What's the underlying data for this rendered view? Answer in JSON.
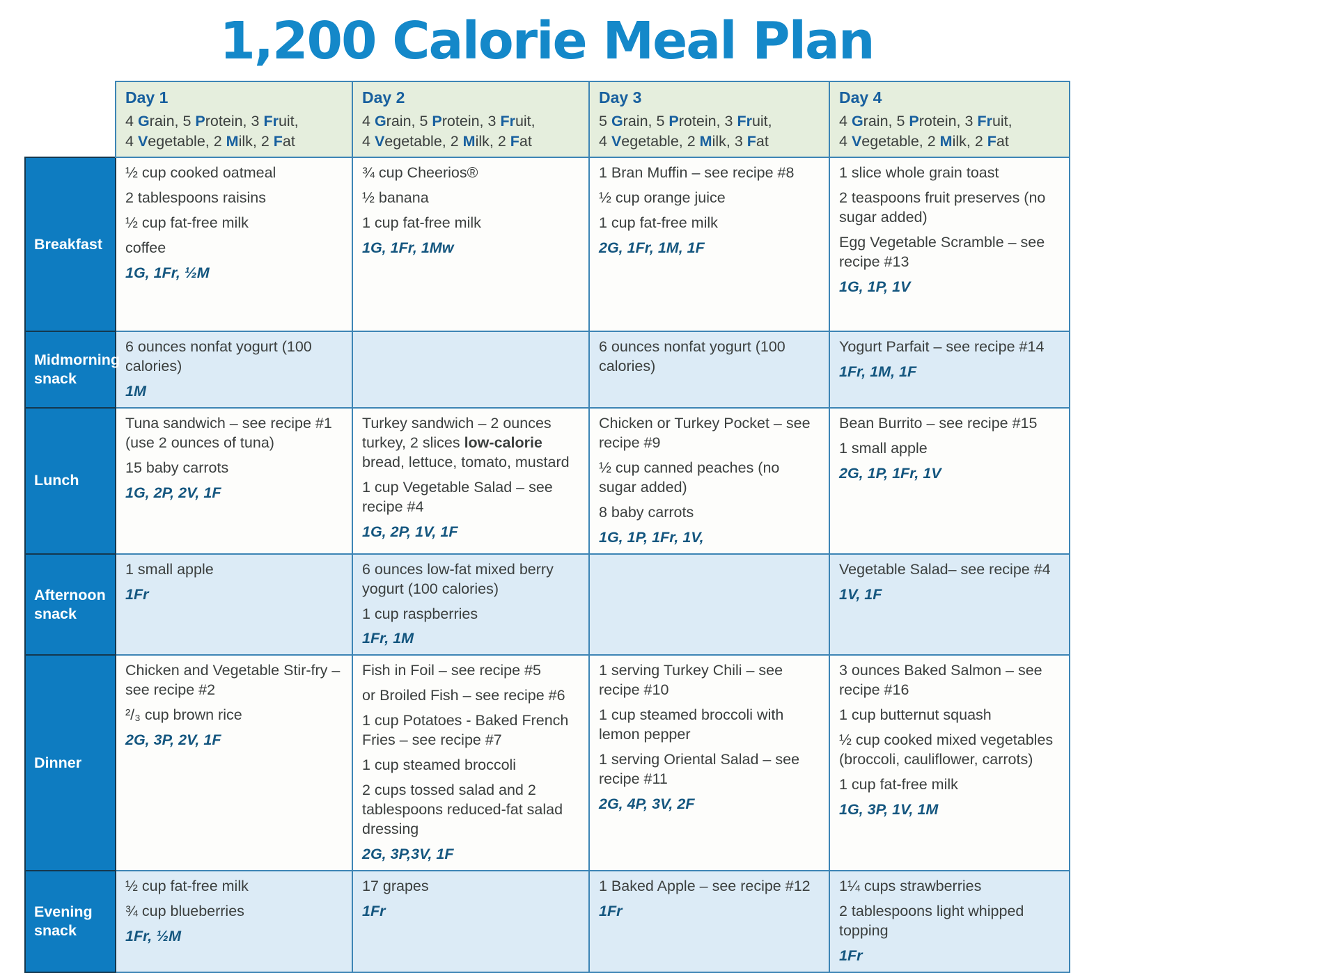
{
  "title": "1,200 Calorie Meal Plan",
  "colors": {
    "title_blue": "#1488c9",
    "accent_blue": "#175f9e",
    "code_blue": "#14567f",
    "label_bg": "#0e7cc1",
    "header_bg": "#e5eedd",
    "snack_bg": "#dcebf6",
    "meal_bg": "#fdfdfb",
    "border_blue": "#3d85b5",
    "text_dark": "#3b3f3e"
  },
  "columns": [
    {
      "day": "Day 1",
      "servings": [
        [
          {
            "pre": "4 ",
            "b": "G",
            "post": "rain, "
          },
          {
            "pre": "5 ",
            "b": "P",
            "post": "rotein, "
          },
          {
            "pre": "3 ",
            "b": "Fr",
            "post": "uit,"
          }
        ],
        [
          {
            "pre": "4 ",
            "b": "V",
            "post": "egetable, "
          },
          {
            "pre": "2 ",
            "b": "M",
            "post": "ilk, "
          },
          {
            "pre": "2 ",
            "b": "F",
            "post": "at"
          }
        ]
      ]
    },
    {
      "day": "Day 2",
      "servings": [
        [
          {
            "pre": "4 ",
            "b": "G",
            "post": "rain, "
          },
          {
            "pre": "5 ",
            "b": "P",
            "post": "rotein, "
          },
          {
            "pre": "3 ",
            "b": "Fr",
            "post": "uit,"
          }
        ],
        [
          {
            "pre": "4 ",
            "b": "V",
            "post": "egetable, "
          },
          {
            "pre": "2 ",
            "b": "M",
            "post": "ilk, "
          },
          {
            "pre": "2 ",
            "b": "F",
            "post": "at"
          }
        ]
      ]
    },
    {
      "day": "Day 3",
      "servings": [
        [
          {
            "pre": "5 ",
            "b": "G",
            "post": "rain, "
          },
          {
            "pre": "5 ",
            "b": "P",
            "post": "rotein, "
          },
          {
            "pre": "3 ",
            "b": "Fr",
            "post": "uit,"
          }
        ],
        [
          {
            "pre": "4 ",
            "b": "V",
            "post": "egetable, "
          },
          {
            "pre": "2 ",
            "b": "M",
            "post": "ilk, "
          },
          {
            "pre": "3 ",
            "b": "F",
            "post": "at"
          }
        ]
      ]
    },
    {
      "day": "Day 4",
      "servings": [
        [
          {
            "pre": "4 ",
            "b": "G",
            "post": "rain, "
          },
          {
            "pre": "5 ",
            "b": "P",
            "post": "rotein, "
          },
          {
            "pre": "3 ",
            "b": "Fr",
            "post": "uit,"
          }
        ],
        [
          {
            "pre": "4 ",
            "b": "V",
            "post": "egetable, "
          },
          {
            "pre": "2 ",
            "b": "M",
            "post": "ilk, "
          },
          {
            "pre": "2 ",
            "b": "F",
            "post": "at"
          }
        ]
      ]
    }
  ],
  "rows": [
    {
      "label": "Breakfast",
      "kind": "meal",
      "cells": [
        {
          "lines": [
            {
              "seg": [
                {
                  "t": "½ cup cooked oatmeal",
                  "s": "n"
                }
              ]
            },
            {
              "seg": [
                {
                  "t": "2 tablespoons raisins",
                  "s": "n"
                }
              ]
            },
            {
              "seg": [
                {
                  "t": "½ cup fat-free milk",
                  "s": "n"
                }
              ]
            },
            {
              "seg": [
                {
                  "t": "coffee",
                  "s": "n"
                }
              ]
            },
            {
              "seg": [
                {
                  "t": "1G, 1Fr, ½M",
                  "s": "c"
                }
              ]
            }
          ]
        },
        {
          "lines": [
            {
              "seg": [
                {
                  "t": "¾ cup Cheerios®",
                  "s": "n"
                }
              ]
            },
            {
              "seg": [
                {
                  "t": "½ banana",
                  "s": "n"
                }
              ]
            },
            {
              "seg": [
                {
                  "t": "1 cup fat-free milk",
                  "s": "n"
                }
              ]
            },
            {
              "seg": [
                {
                  "t": "1G, 1Fr, 1Mw",
                  "s": "c"
                }
              ]
            }
          ]
        },
        {
          "lines": [
            {
              "seg": [
                {
                  "t": "1 Bran Muffin – see recipe #8",
                  "s": "n"
                }
              ]
            },
            {
              "seg": [
                {
                  "t": "½ cup orange juice",
                  "s": "n"
                }
              ]
            },
            {
              "seg": [
                {
                  "t": "1 cup fat-free milk",
                  "s": "n"
                }
              ]
            },
            {
              "seg": [
                {
                  "t": "2G, 1Fr, 1M, 1F",
                  "s": "c"
                }
              ]
            }
          ]
        },
        {
          "lines": [
            {
              "seg": [
                {
                  "t": "1 slice  whole grain toast",
                  "s": "n"
                }
              ]
            },
            {
              "seg": [
                {
                  "t": "2 teaspoons fruit preserves (no sugar added)",
                  "s": "n"
                }
              ]
            },
            {
              "seg": [
                {
                  "t": "Egg Vegetable Scramble – see recipe #13",
                  "s": "n"
                }
              ]
            },
            {
              "seg": [
                {
                  "t": "1G, 1P, 1V",
                  "s": "c"
                }
              ]
            }
          ]
        }
      ]
    },
    {
      "label": "Midmorning snack",
      "kind": "snack",
      "cells": [
        {
          "lines": [
            {
              "seg": [
                {
                  "t": "6 ounces nonfat yogurt (100 calories)",
                  "s": "n"
                }
              ]
            },
            {
              "seg": [
                {
                  "t": "1M",
                  "s": "c"
                }
              ]
            }
          ]
        },
        {
          "lines": []
        },
        {
          "lines": [
            {
              "seg": [
                {
                  "t": "6 ounces nonfat yogurt (100 calories)",
                  "s": "n"
                }
              ]
            }
          ]
        },
        {
          "lines": [
            {
              "seg": [
                {
                  "t": "Yogurt Parfait – see recipe #14",
                  "s": "n"
                }
              ]
            },
            {
              "seg": [
                {
                  "t": "1Fr, 1M, 1F",
                  "s": "c"
                }
              ]
            }
          ]
        }
      ]
    },
    {
      "label": "Lunch",
      "kind": "meal",
      "cells": [
        {
          "lines": [
            {
              "seg": [
                {
                  "t": "Tuna sandwich – see recipe #1 (use 2 ounces of tuna)",
                  "s": "n"
                }
              ]
            },
            {
              "seg": [
                {
                  "t": "15 baby carrots",
                  "s": "n"
                }
              ]
            },
            {
              "seg": [
                {
                  "t": "1G, 2P, 2V, 1F",
                  "s": "c"
                }
              ]
            }
          ]
        },
        {
          "lines": [
            {
              "seg": [
                {
                  "t": "Turkey sandwich – 2 ounces turkey, 2 slices ",
                  "s": "n"
                },
                {
                  "t": "low-calorie",
                  "s": "b"
                },
                {
                  "t": " bread, lettuce, tomato, mustard",
                  "s": "n"
                }
              ]
            },
            {
              "seg": [
                {
                  "t": "1 cup Vegetable Salad – see recipe #4",
                  "s": "n"
                }
              ]
            },
            {
              "seg": [
                {
                  "t": "1G, 2P, 1V, 1F",
                  "s": "c"
                }
              ]
            }
          ]
        },
        {
          "lines": [
            {
              "seg": [
                {
                  "t": "Chicken or Turkey Pocket – see recipe #9",
                  "s": "n"
                }
              ]
            },
            {
              "seg": [
                {
                  "t": "½ cup canned peaches (no sugar added)",
                  "s": "n"
                }
              ]
            },
            {
              "seg": [
                {
                  "t": "8 baby carrots",
                  "s": "n"
                }
              ]
            },
            {
              "seg": [
                {
                  "t": "1G, 1P, 1Fr, 1V,",
                  "s": "c"
                }
              ]
            }
          ]
        },
        {
          "lines": [
            {
              "seg": [
                {
                  "t": "Bean Burrito – see recipe #15",
                  "s": "n"
                }
              ]
            },
            {
              "seg": [
                {
                  "t": "1 small apple",
                  "s": "n"
                }
              ]
            },
            {
              "seg": [
                {
                  "t": "2G, 1P, 1Fr, 1V",
                  "s": "c"
                }
              ]
            }
          ]
        }
      ]
    },
    {
      "label": "Afternoon snack",
      "kind": "snack",
      "cells": [
        {
          "lines": [
            {
              "seg": [
                {
                  "t": "1 small apple",
                  "s": "n"
                }
              ]
            },
            {
              "seg": [
                {
                  "t": "1Fr",
                  "s": "c"
                }
              ]
            }
          ]
        },
        {
          "lines": [
            {
              "seg": [
                {
                  "t": "6 ounces low-fat mixed berry yogurt (100 calories)",
                  "s": "n"
                }
              ]
            },
            {
              "seg": [
                {
                  "t": "1 cup raspberries",
                  "s": "n"
                }
              ]
            },
            {
              "seg": [
                {
                  "t": "1Fr, 1M",
                  "s": "c"
                }
              ]
            }
          ]
        },
        {
          "lines": []
        },
        {
          "lines": [
            {
              "seg": [
                {
                  "t": "Vegetable Salad– see recipe #4",
                  "s": "n"
                }
              ]
            },
            {
              "seg": [
                {
                  "t": "1V, 1F",
                  "s": "c"
                }
              ]
            }
          ]
        }
      ]
    },
    {
      "label": "Dinner",
      "kind": "meal",
      "cells": [
        {
          "lines": [
            {
              "seg": [
                {
                  "t": "Chicken and Vegetable Stir-fry – see recipe #2",
                  "s": "n"
                }
              ]
            },
            {
              "seg": [
                {
                  "t": "²/₃ cup brown rice",
                  "s": "n"
                }
              ]
            },
            {
              "seg": [
                {
                  "t": "2G, 3P, 2V, 1F",
                  "s": "c"
                }
              ]
            }
          ]
        },
        {
          "lines": [
            {
              "seg": [
                {
                  "t": "Fish in Foil – see recipe #5",
                  "s": "n"
                }
              ]
            },
            {
              "seg": [
                {
                  "t": "or Broiled Fish – see recipe #6",
                  "s": "n"
                }
              ]
            },
            {
              "seg": [
                {
                  "t": "1 cup Potatoes - Baked French Fries – see recipe #7",
                  "s": "n"
                }
              ]
            },
            {
              "seg": [
                {
                  "t": "1 cup steamed broccoli",
                  "s": "n"
                }
              ]
            },
            {
              "seg": [
                {
                  "t": "2 cups tossed salad and 2 tablespoons reduced-fat salad dressing",
                  "s": "n"
                }
              ]
            },
            {
              "seg": [
                {
                  "t": "2G, 3P,3V, 1F",
                  "s": "c"
                }
              ]
            }
          ]
        },
        {
          "lines": [
            {
              "seg": [
                {
                  "t": "1 serving Turkey Chili – see recipe #10",
                  "s": "n"
                }
              ]
            },
            {
              "seg": [
                {
                  "t": "1 cup steamed broccoli with lemon pepper",
                  "s": "n"
                }
              ]
            },
            {
              "seg": [
                {
                  "t": "1 serving Oriental Salad – see recipe #11",
                  "s": "n"
                }
              ]
            },
            {
              "seg": [
                {
                  "t": "2G, 4P, 3V, 2F",
                  "s": "c"
                }
              ]
            }
          ]
        },
        {
          "lines": [
            {
              "seg": [
                {
                  "t": "3 ounces Baked Salmon – see recipe #16",
                  "s": "n"
                }
              ]
            },
            {
              "seg": [
                {
                  "t": "1 cup butternut squash",
                  "s": "n"
                }
              ]
            },
            {
              "seg": [
                {
                  "t": "½ cup cooked mixed vegetables (broccoli, cauliflower, carrots)",
                  "s": "n"
                }
              ]
            },
            {
              "seg": [
                {
                  "t": "1 cup fat-free milk",
                  "s": "n"
                }
              ]
            },
            {
              "seg": [
                {
                  "t": "1G, 3P, 1V, 1M",
                  "s": "c"
                }
              ]
            }
          ]
        }
      ]
    },
    {
      "label": "Evening snack",
      "kind": "snack",
      "cells": [
        {
          "lines": [
            {
              "seg": [
                {
                  "t": "½ cup fat-free milk",
                  "s": "n"
                }
              ]
            },
            {
              "seg": [
                {
                  "t": "¾ cup blueberries",
                  "s": "n"
                }
              ]
            },
            {
              "seg": [
                {
                  "t": "1Fr, ½M",
                  "s": "c"
                }
              ]
            }
          ]
        },
        {
          "lines": [
            {
              "seg": [
                {
                  "t": "17 grapes",
                  "s": "n"
                }
              ]
            },
            {
              "seg": [
                {
                  "t": "1Fr",
                  "s": "c"
                }
              ]
            }
          ]
        },
        {
          "lines": [
            {
              "seg": [
                {
                  "t": "1 Baked Apple – see recipe #12",
                  "s": "n"
                }
              ]
            },
            {
              "seg": [
                {
                  "t": "1Fr",
                  "s": "c"
                }
              ]
            }
          ]
        },
        {
          "lines": [
            {
              "seg": [
                {
                  "t": "1¼ cups strawberries",
                  "s": "n"
                }
              ]
            },
            {
              "seg": [
                {
                  "t": "2 tablespoons light whipped topping",
                  "s": "n"
                }
              ]
            },
            {
              "seg": [
                {
                  "t": "1Fr",
                  "s": "c"
                }
              ]
            }
          ]
        }
      ]
    }
  ]
}
